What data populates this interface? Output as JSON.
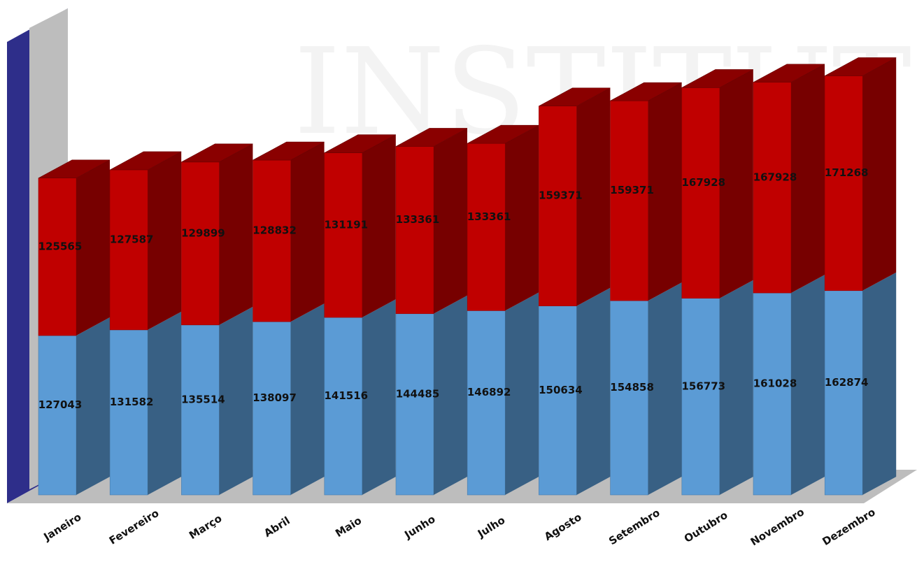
{
  "chart_data": {
    "type": "bar",
    "stacked": true,
    "style": "3d",
    "categories": [
      "Janeiro",
      "Fevereiro",
      "Março",
      "Abril",
      "Maio",
      "Junho",
      "Julho",
      "Agosto",
      "Setembro",
      "Outubro",
      "Novembro",
      "Dezembro"
    ],
    "series": [
      {
        "values": [
          127043,
          131582,
          135514,
          138097,
          141516,
          144485,
          146892,
          150634,
          154858,
          156773,
          161028,
          162874
        ],
        "color": "#5b9bd5"
      },
      {
        "values": [
          125565,
          127587,
          129899,
          128832,
          131191,
          133361,
          133361,
          159371,
          159371,
          167928,
          167928,
          171268
        ],
        "color": "#c00000"
      }
    ],
    "ylim": [
      0,
      350000
    ],
    "legend": "none",
    "grid": false,
    "watermark": "INSTITUTO"
  }
}
